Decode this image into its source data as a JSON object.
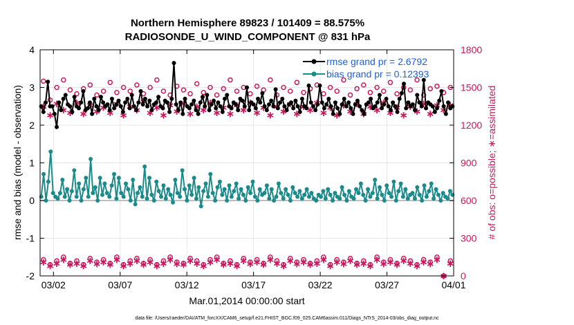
{
  "chart_data": {
    "type": "line",
    "title": "Northern Hemisphere 89823 / 101409 = 88.575%",
    "subtitle": "RADIOSONDE_U_WIND_COMPONENT @ 831 hPa",
    "xlabel": "Mar.01,2014 00:00:00 start",
    "ylabel_left": "rmse and bias (model - observation)",
    "ylabel_right": "# of obs: o=possible; ∗=assimilated",
    "footnote": "data file: /Users/raeder/DAI/ATM_forcXX/CAM6_setup/f.e21.FHIST_BGC.f09_025.CAM6assim.011/Diags_NTrS_2014-03/obs_diag_output.nc",
    "x_range_days": [
      0.5,
      31.5
    ],
    "x_ticks": [
      {
        "day": 1.5,
        "label": "03/02"
      },
      {
        "day": 6.5,
        "label": "03/07"
      },
      {
        "day": 11.5,
        "label": "03/12"
      },
      {
        "day": 16.5,
        "label": "03/17"
      },
      {
        "day": 21.5,
        "label": "03/22"
      },
      {
        "day": 26.5,
        "label": "03/27"
      },
      {
        "day": 31.5,
        "label": "04/01"
      }
    ],
    "ylim_left": [
      -2,
      4
    ],
    "yticks_left": [
      "-2",
      "-1",
      "0",
      "1",
      "2",
      "3",
      "4"
    ],
    "ylim_right": [
      0,
      1800
    ],
    "yticks_right": [
      "0",
      "300",
      "600",
      "900",
      "1200",
      "1500",
      "1800"
    ],
    "legend": [
      {
        "label": "rmse grand pr = 2.6792",
        "color": "#000000"
      },
      {
        "label": "bias grand pr = 0.12393",
        "color": "#1a8a8a"
      }
    ],
    "colors": {
      "rmse": "#000000",
      "bias": "#1a8a8a",
      "obs": "#c8175e",
      "zero_line": "#bdbdbd"
    },
    "series": {
      "rmse": [
        2.5,
        2.35,
        2.6,
        3.15,
        2.5,
        2.5,
        2.3,
        1.95,
        2.6,
        2.4,
        2.7,
        2.8,
        2.55,
        2.5,
        2.35,
        2.75,
        2.5,
        2.45,
        2.6,
        2.9,
        2.4,
        2.45,
        2.6,
        2.3,
        2.7,
        2.5,
        2.4,
        2.75,
        2.6,
        2.5,
        2.55,
        2.4,
        2.7,
        2.45,
        2.55,
        2.65,
        2.5,
        2.35,
        2.6,
        2.7,
        2.45,
        2.8,
        2.5,
        2.4,
        2.6,
        2.9,
        2.55,
        2.7,
        2.5,
        2.65,
        2.4,
        2.55,
        2.6,
        2.75,
        2.5,
        2.45,
        2.65,
        2.6,
        2.35,
        2.7,
        3.65,
        2.55,
        2.4,
        2.6,
        2.3,
        2.7,
        2.5,
        2.45,
        2.55,
        2.65,
        2.4,
        2.3,
        2.6,
        2.75,
        2.5,
        2.8,
        2.4,
        2.55,
        2.65,
        2.45,
        2.6,
        2.5,
        2.35,
        2.7,
        2.8,
        2.5,
        2.45,
        2.6,
        2.55,
        2.4,
        2.7,
        2.65,
        2.5,
        3.0,
        2.4,
        2.6,
        2.55,
        2.45,
        2.7,
        2.6,
        2.85,
        2.5,
        2.4,
        2.55,
        2.65,
        2.5,
        2.95,
        2.45,
        2.6,
        2.7,
        2.5,
        2.4,
        2.55,
        2.6,
        2.45,
        2.65,
        2.5,
        2.35,
        2.7,
        2.5,
        2.45,
        3.05,
        2.6,
        2.5,
        2.4,
        2.55,
        3.05,
        2.6,
        2.45,
        2.55,
        2.7,
        2.5,
        2.3,
        2.6,
        2.45,
        2.3,
        2.55,
        2.7,
        2.5,
        2.6,
        2.45,
        2.3,
        2.55,
        2.65,
        2.5,
        2.4,
        2.3,
        2.55,
        2.6,
        2.7,
        2.45,
        2.5,
        2.6,
        2.8,
        2.45,
        2.55,
        2.7,
        2.5,
        2.4,
        2.6,
        2.5,
        2.35,
        2.7,
        2.85,
        3.1,
        2.45,
        2.6,
        2.5,
        2.55,
        2.4,
        2.8,
        2.6,
        2.5,
        3.2,
        2.45,
        2.6,
        2.55,
        2.5,
        2.35,
        2.45,
        2.65,
        2.9,
        2.5,
        2.3,
        2.6,
        2.45,
        2.5
      ],
      "bias": [
        0.1,
        0.7,
        0.0,
        0.5,
        1.3,
        0.2,
        0.1,
        0.05,
        0.2,
        0.55,
        0.1,
        0.3,
        0.0,
        0.25,
        0.8,
        0.1,
        0.45,
        0.0,
        0.3,
        0.6,
        0.1,
        1.1,
        0.2,
        0.35,
        0.0,
        0.6,
        0.15,
        0.45,
        0.2,
        0.1,
        0.4,
        0.7,
        0.05,
        0.6,
        0.2,
        0.1,
        0.45,
        0.3,
        0.0,
        0.55,
        -0.1,
        0.2,
        0.35,
        0.1,
        0.9,
        0.05,
        0.6,
        0.15,
        0.0,
        0.5,
        0.25,
        0.1,
        0.4,
        0.05,
        0.3,
        0.15,
        -0.05,
        0.55,
        0.2,
        0.1,
        0.8,
        0.3,
        0.0,
        0.4,
        0.15,
        0.6,
        0.05,
        0.35,
        -0.15,
        0.25,
        0.45,
        0.1,
        0.7,
        0.2,
        0.0,
        0.35,
        0.5,
        0.15,
        0.3,
        0.0,
        0.4,
        0.1,
        0.25,
        0.45,
        0.05,
        0.3,
        0.15,
        0.0,
        0.35,
        0.2,
        0.5,
        0.1,
        0.0,
        0.3,
        0.15,
        0.2,
        0.4,
        0.05,
        0.3,
        0.0,
        0.1,
        0.45,
        0.2,
        0.05,
        0.3,
        0.15,
        0.0,
        0.35,
        0.2,
        0.1,
        0.25,
        0.05,
        0.15,
        0.3,
        0.1,
        0.2,
        0.05,
        0.0,
        0.15,
        0.1,
        0.25,
        0.05,
        0.3,
        0.15,
        0.0,
        0.2,
        0.1,
        0.05,
        0.35,
        0.15,
        0.0,
        0.25,
        0.1,
        0.05,
        0.3,
        0.2,
        0.45,
        0.15,
        0.0,
        0.3,
        0.1,
        0.2,
        0.55,
        0.05,
        0.35,
        0.15,
        0.0,
        0.4,
        0.2,
        0.1,
        0.5,
        0.0,
        0.25,
        0.45,
        0.1,
        0.3,
        0.05,
        0.15,
        0.2,
        0.05,
        0.35,
        0.15,
        0.0,
        0.4,
        0.1,
        0.25,
        0.45,
        0.05,
        0.3,
        0.15,
        0.0,
        0.2,
        0.1,
        0.05,
        0.25,
        0.15
      ],
      "obs_possible": [
        1550,
        1400,
        1500,
        1560,
        1480,
        1450,
        1490,
        1520,
        1440,
        1470,
        1540,
        1460,
        1500,
        1470,
        1520,
        1450,
        1500,
        1560,
        1470,
        1440,
        1510,
        1480,
        1450,
        1530,
        1460,
        1500,
        1440,
        1490,
        1560,
        1470,
        1500,
        1450,
        1510,
        1480,
        1560,
        1440,
        1500,
        1470,
        1540,
        1460,
        1490,
        1520,
        1450,
        1500,
        1470,
        1560,
        1440,
        1490,
        1520,
        1460,
        1500,
        1470,
        1540,
        1450,
        1500,
        1480,
        1560,
        1440,
        1490,
        1510,
        1460,
        1500
      ],
      "obs_assimilated": [
        1350,
        1280,
        1370,
        1320,
        1300,
        1380,
        1290,
        1360,
        1310,
        1340,
        1300,
        1370,
        1280,
        1350,
        1320,
        1390,
        1300,
        1340,
        1280,
        1360,
        1310,
        1370,
        1290,
        1350,
        1320,
        1380,
        1300,
        1340,
        1290,
        1360,
        1320,
        1380,
        1300,
        1340,
        1280,
        1350,
        1310,
        1370,
        1290,
        1350,
        1320,
        1380,
        1300,
        1340,
        1280,
        1360,
        1310,
        1370,
        1290,
        1350,
        1320,
        1380,
        1300,
        1340,
        1280,
        1350,
        1310,
        1370,
        1290,
        1360,
        1320,
        1360
      ],
      "obs_low_possible": [
        130,
        90,
        120,
        150,
        100,
        120,
        90,
        140,
        110,
        130,
        100,
        150,
        90,
        120,
        140,
        100,
        130,
        90,
        120,
        150,
        110,
        100,
        140,
        120,
        90,
        130,
        150,
        100,
        120,
        90,
        140,
        110,
        130,
        100,
        150,
        120,
        90,
        140,
        110,
        130,
        100,
        120,
        150,
        90,
        130,
        110,
        140,
        100,
        120,
        90,
        150,
        110,
        130,
        100,
        140,
        120,
        90,
        130,
        110,
        150,
        0,
        120
      ],
      "obs_low_assimilated": [
        110,
        80,
        100,
        130,
        90,
        100,
        80,
        120,
        95,
        110,
        90,
        130,
        80,
        100,
        120,
        90,
        110,
        80,
        100,
        130,
        95,
        90,
        120,
        100,
        80,
        110,
        130,
        90,
        100,
        80,
        120,
        95,
        110,
        90,
        130,
        100,
        80,
        120,
        95,
        110,
        90,
        100,
        130,
        80,
        110,
        95,
        120,
        90,
        100,
        80,
        130,
        95,
        110,
        90,
        120,
        100,
        80,
        110,
        95,
        130,
        0,
        100
      ]
    }
  }
}
